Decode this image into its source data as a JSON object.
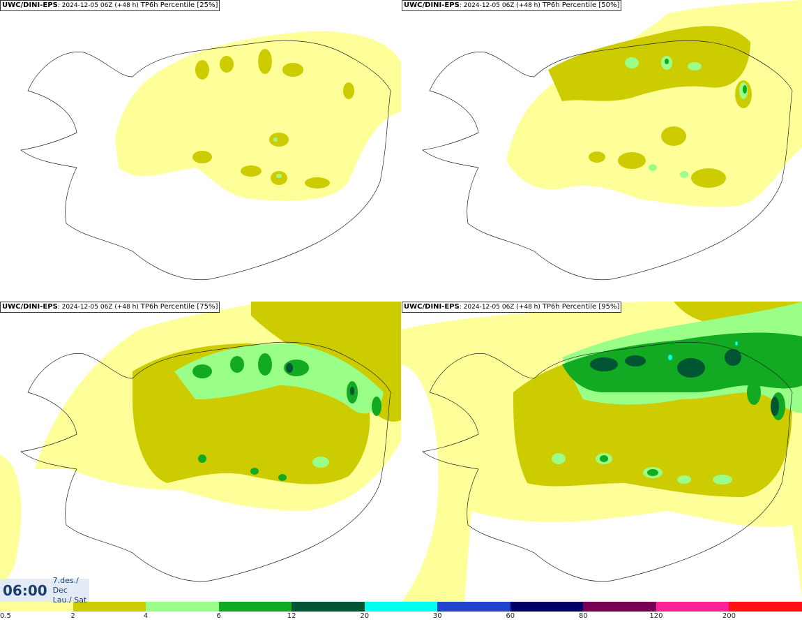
{
  "panels": [
    {
      "model": "UWC/DINI-EPS",
      "run": "2024-12-05 06Z (+48 h)",
      "percentile": "TP6h Percentile [25%]"
    },
    {
      "model": "UWC/DINI-EPS",
      "run": "2024-12-05 06Z (+48 h)",
      "percentile": "TP6h Percentile [50%]"
    },
    {
      "model": "UWC/DINI-EPS",
      "run": "2024-12-05 06Z (+48 h)",
      "percentile": "TP6h Percentile [75%]"
    },
    {
      "model": "UWC/DINI-EPS",
      "run": "2024-12-05 06Z (+48 h)",
      "percentile": "TP6h Percentile [95%]"
    }
  ],
  "valid_time": {
    "time": "06:00",
    "date": "7.des./ Dec",
    "day": "Lau./ Sat"
  },
  "legend": {
    "colors": [
      "#ffff99",
      "#cccc00",
      "#99ff88",
      "#11aa22",
      "#005533",
      "#00ffee",
      "#2244cc",
      "#000066",
      "#770055",
      "#ff2299",
      "#ff1111"
    ],
    "labels": [
      "0.5",
      "2",
      "4",
      "6",
      "12",
      "20",
      "30",
      "60",
      "80",
      "120",
      "200"
    ]
  }
}
